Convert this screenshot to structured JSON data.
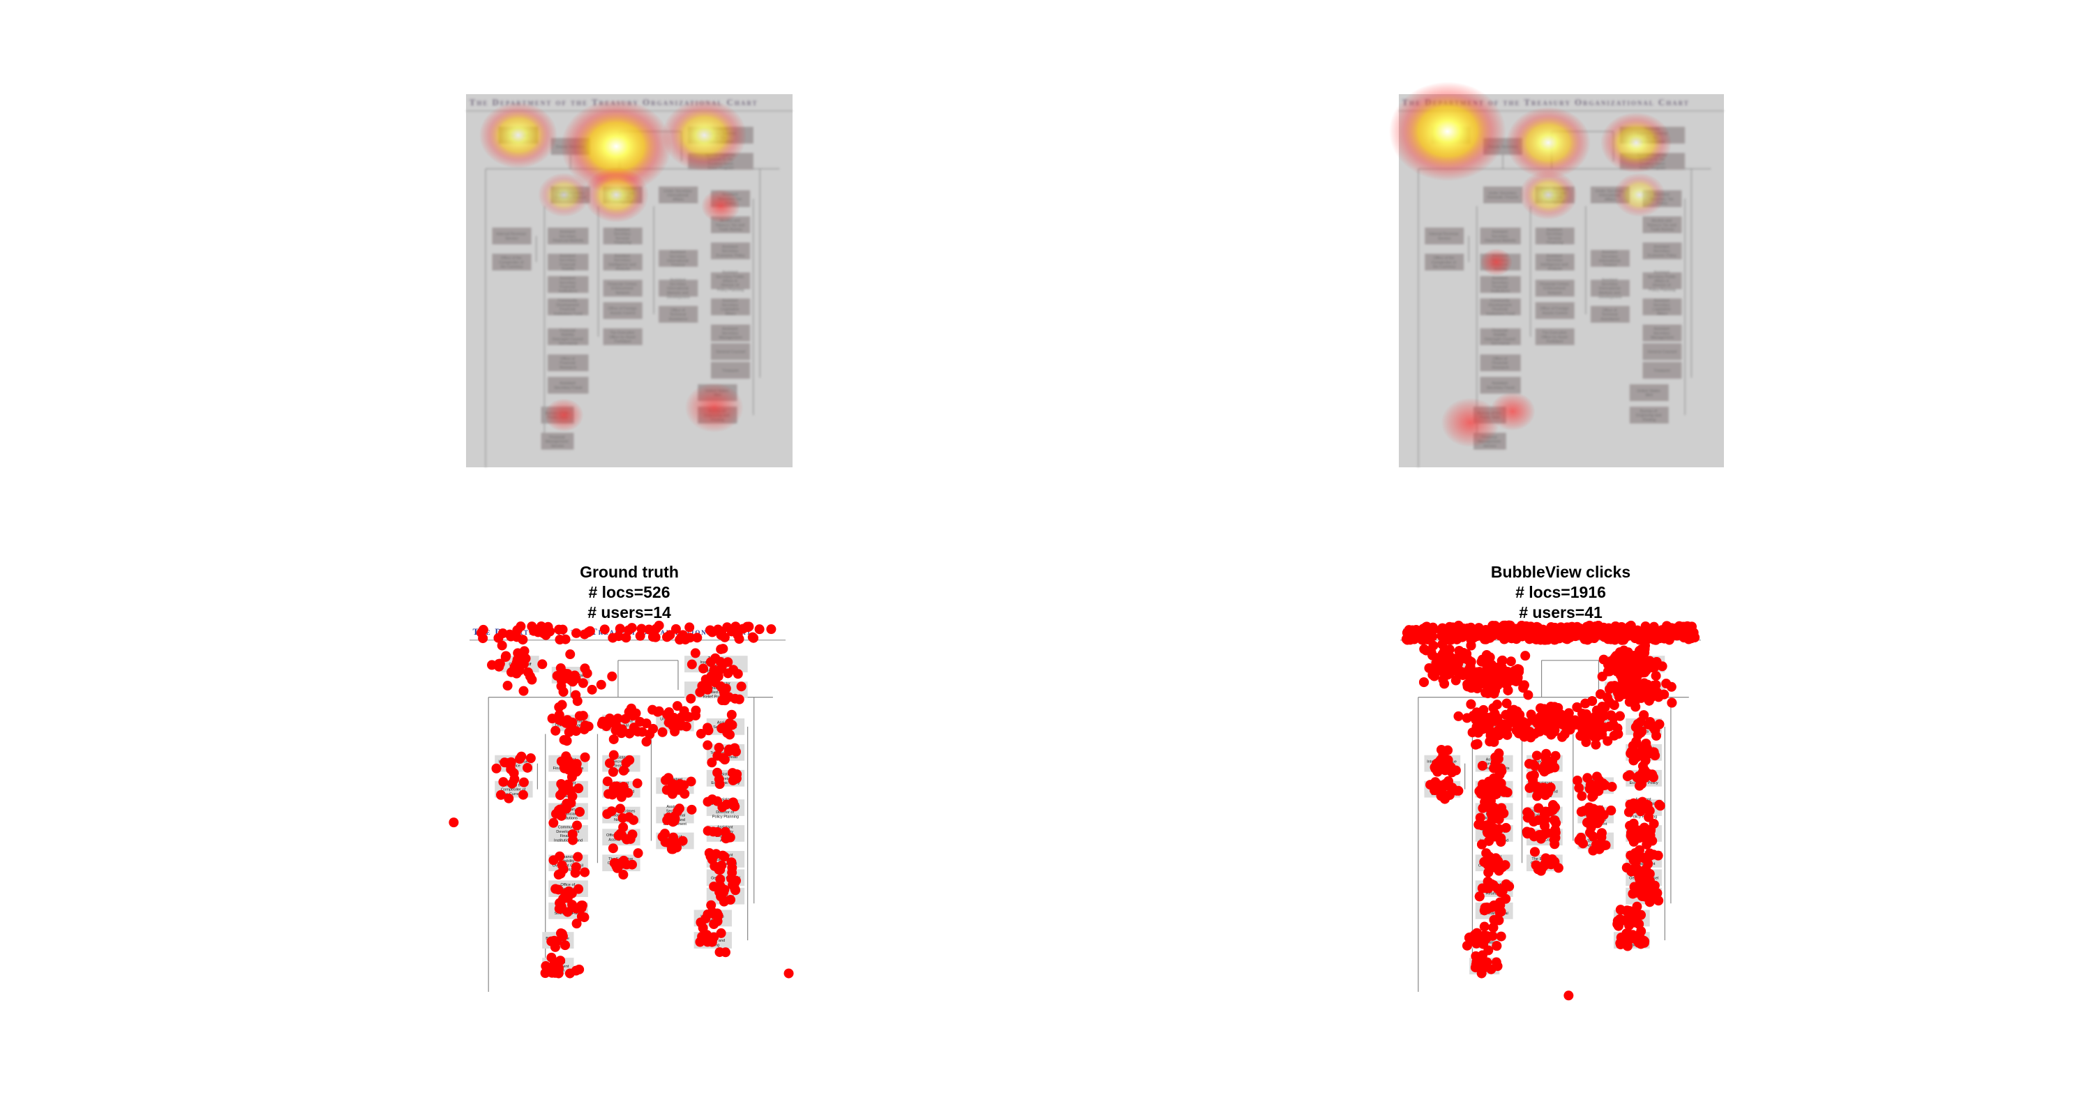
{
  "org_chart": {
    "title": "The Department of the Treasury Organizational Chart",
    "boxes": [
      "Chief of Staff",
      "Deputy Secretary",
      "Treasury Inspector General for Tax Administration",
      "Special Inspector General for the Troubled Asset Relief Program",
      "Under Secretary Domestic Finance",
      "Under Secretary Terrorism and Financial Intelligence",
      "Under Secretary International Affairs",
      "Internal Revenue Service",
      "Office of the Comptroller of the Currency",
      "Assistant Secretary Financial Markets",
      "Assistant Secretary Financial Stability",
      "Assistant Secretary Financial Institutions",
      "Community Development Financial Institutions Fund",
      "Financial Stability Oversight Council Secretariat",
      "Office of Financial Research",
      "Assistant Secretary Fiscal",
      "Bureau of the Public Debt",
      "Financial Management Service",
      "Assistant Secretary Terrorist Financing",
      "Assistant Secretary Intelligence and Analysis",
      "Financial Crimes Enforcement Network",
      "Office of Foreign Assets Control",
      "The Executive Office for Asset Forfeiture",
      "Assistant Secretary International Finance",
      "Assistant Secretary International Markets and Development",
      "Office of Technical Assistance",
      "Assistant Secretary Tax Policy",
      "Alcohol and Tobacco Tax and Trade Bureau",
      "Assistant Secretary Economic Policy",
      "Assistant Secretary Public Affairs & Director of Policy Planning",
      "Assistant Secretary Legislative Affairs",
      "Assistant Secretary Management",
      "General Counsel",
      "Treasurer",
      "United States Mint",
      "Bureau of Engraving and Printing"
    ]
  },
  "panels": [
    {
      "title": "Ground truth",
      "locs": "# locs=526",
      "users": "# users=14"
    },
    {
      "title": "BubbleView clicks",
      "locs": "# locs=1916",
      "users": "# users=41"
    }
  ]
}
